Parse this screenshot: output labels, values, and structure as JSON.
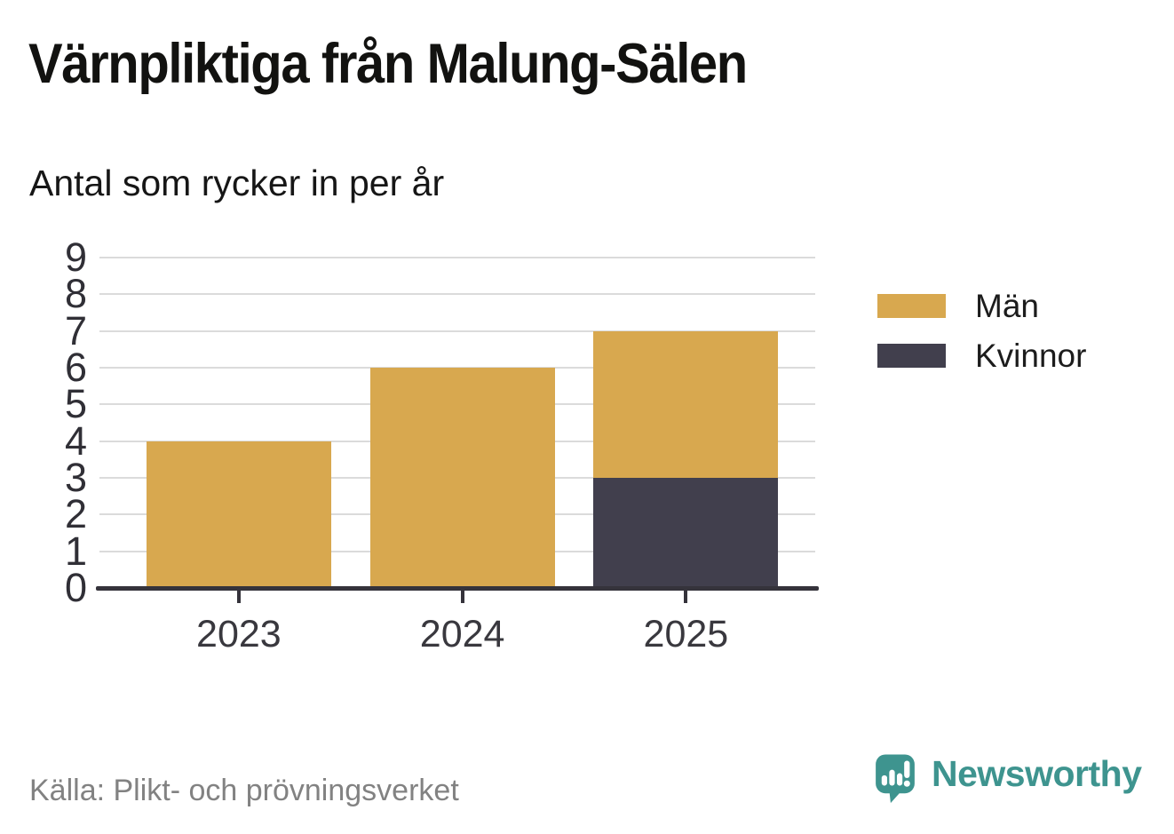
{
  "header": {
    "title": "Värnpliktiga från Malung-Sälen",
    "subtitle": "Antal som rycker in per år"
  },
  "footer": {
    "source": "Källa: Plikt- och prövningsverket",
    "brand": "Newsworthy"
  },
  "icons": {
    "logo_icon": "newsworthy-speech-bubble-with-bar-chart-and-exclamation"
  },
  "colors": {
    "men_bar": "#d8a84f",
    "women_bar": "#413f4d",
    "axis": "#35333b",
    "gridline": "#dbdbdb",
    "brand_teal": "#3e948f",
    "title_text": "#121210",
    "tick_label_text": "#302f36",
    "source_text": "#828282"
  },
  "chart_data": {
    "type": "bar",
    "stacked": true,
    "title": "Värnpliktiga från Malung-Sälen",
    "subtitle": "Antal som rycker in per år",
    "categories": [
      "2023",
      "2024",
      "2025"
    ],
    "series": [
      {
        "name": "Män",
        "color": "#d8a84f",
        "values": [
          4,
          6,
          4
        ]
      },
      {
        "name": "Kvinnor",
        "color": "#413f4d",
        "values": [
          0,
          0,
          3
        ]
      }
    ],
    "totals": [
      4,
      6,
      7
    ],
    "xlabel": "",
    "ylabel": "",
    "ylim": [
      0,
      9
    ],
    "yticks": [
      0,
      1,
      2,
      3,
      4,
      5,
      6,
      7,
      8,
      9
    ],
    "grid": true,
    "legend_position": "right",
    "stack_order_bottom_to_top": [
      "Kvinnor",
      "Män"
    ]
  }
}
